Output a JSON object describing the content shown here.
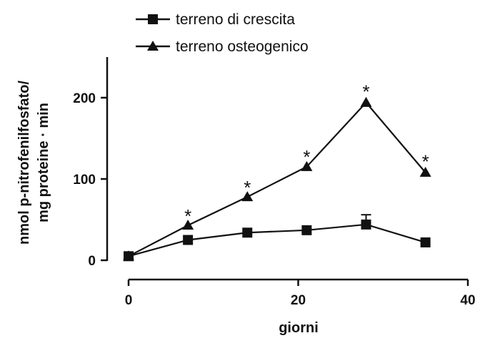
{
  "chart_data": {
    "type": "line",
    "xlabel": "giorni",
    "ylabel_lines": [
      "nmol p-nitrofenilfosfato/",
      "mg proteine · min"
    ],
    "xlim": [
      0,
      40
    ],
    "ylim": [
      0,
      250
    ],
    "xticks": [
      0,
      20,
      40
    ],
    "yticks": [
      0,
      100,
      200
    ],
    "legend_position": "top-left",
    "series": [
      {
        "name": "terreno di crescita",
        "marker": "square",
        "x": [
          0,
          7,
          14,
          21,
          28,
          35
        ],
        "y": [
          5,
          25,
          34,
          37,
          44,
          22
        ],
        "error_upper": [
          0,
          0,
          0,
          0,
          12,
          0
        ]
      },
      {
        "name": "terreno osteogenico",
        "marker": "triangle",
        "x": [
          0,
          7,
          14,
          21,
          28,
          35
        ],
        "y": [
          5,
          43,
          78,
          115,
          194,
          108
        ]
      }
    ],
    "annotations": [
      {
        "text": "*",
        "x": 7,
        "y": 57
      },
      {
        "text": "*",
        "x": 14,
        "y": 92
      },
      {
        "text": "*",
        "x": 21,
        "y": 130
      },
      {
        "text": "*",
        "x": 28,
        "y": 210
      },
      {
        "text": "*",
        "x": 35,
        "y": 124
      }
    ]
  }
}
